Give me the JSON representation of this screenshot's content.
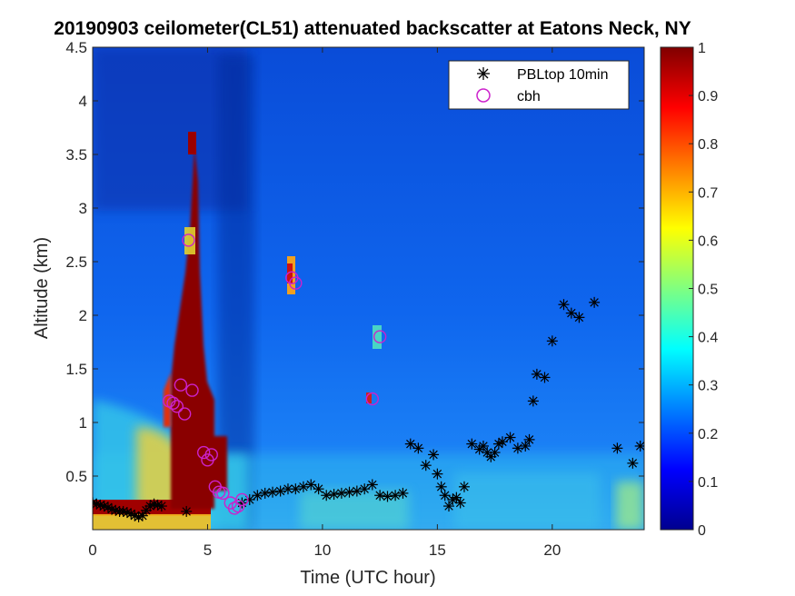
{
  "chart_data": {
    "type": "heatmap",
    "title": "20190903 ceilometer(CL51) attenuated backscatter at Eatons Neck, NY",
    "xlabel": "Time (UTC hour)",
    "ylabel": "Altitude (km)",
    "xlim": [
      0,
      24
    ],
    "ylim": [
      0,
      4.5
    ],
    "xticks": [
      0,
      5,
      10,
      15,
      20
    ],
    "xtick_labels": [
      "0",
      "5",
      "10",
      "15",
      "20"
    ],
    "yticks": [
      0.5,
      1,
      1.5,
      2,
      2.5,
      3,
      3.5,
      4,
      4.5
    ],
    "ytick_labels": [
      "0.5",
      "1",
      "1.5",
      "2",
      "2.5",
      "3",
      "3.5",
      "4",
      "4.5"
    ],
    "colorbar": {
      "colormap": "jet",
      "clim": [
        0,
        1
      ],
      "ticks": [
        0,
        0.1,
        0.2,
        0.3,
        0.4,
        0.5,
        0.6,
        0.7,
        0.8,
        0.9,
        1
      ],
      "tick_labels": [
        "0",
        "0.1",
        "0.2",
        "0.3",
        "0.4",
        "0.5",
        "0.6",
        "0.7",
        "0.8",
        "0.9",
        "1"
      ]
    },
    "legend": {
      "location": "top-right",
      "entries": [
        "PBLtop 10min",
        "cbh"
      ]
    },
    "series": [
      {
        "name": "PBLtop 10min",
        "marker": "asterisk",
        "color": "#000000",
        "points": [
          [
            0.0,
            0.25
          ],
          [
            0.17,
            0.24
          ],
          [
            0.33,
            0.23
          ],
          [
            0.5,
            0.22
          ],
          [
            0.67,
            0.21
          ],
          [
            0.83,
            0.19
          ],
          [
            1.0,
            0.18
          ],
          [
            1.17,
            0.17
          ],
          [
            1.33,
            0.17
          ],
          [
            1.5,
            0.16
          ],
          [
            1.67,
            0.15
          ],
          [
            1.83,
            0.13
          ],
          [
            2.0,
            0.12
          ],
          [
            2.17,
            0.13
          ],
          [
            2.33,
            0.18
          ],
          [
            2.5,
            0.22
          ],
          [
            2.67,
            0.24
          ],
          [
            2.83,
            0.23
          ],
          [
            3.0,
            0.22
          ],
          [
            4.08,
            0.17
          ],
          [
            6.5,
            0.25
          ],
          [
            6.83,
            0.28
          ],
          [
            7.17,
            0.32
          ],
          [
            7.5,
            0.34
          ],
          [
            7.83,
            0.35
          ],
          [
            8.17,
            0.36
          ],
          [
            8.5,
            0.38
          ],
          [
            8.83,
            0.38
          ],
          [
            9.17,
            0.4
          ],
          [
            9.5,
            0.42
          ],
          [
            9.83,
            0.38
          ],
          [
            10.17,
            0.32
          ],
          [
            10.5,
            0.33
          ],
          [
            10.83,
            0.34
          ],
          [
            11.17,
            0.35
          ],
          [
            11.5,
            0.36
          ],
          [
            11.83,
            0.38
          ],
          [
            12.17,
            0.42
          ],
          [
            12.5,
            0.32
          ],
          [
            12.83,
            0.31
          ],
          [
            13.17,
            0.32
          ],
          [
            13.5,
            0.34
          ],
          [
            13.83,
            0.8
          ],
          [
            14.17,
            0.76
          ],
          [
            14.5,
            0.6
          ],
          [
            14.83,
            0.7
          ],
          [
            15.0,
            0.52
          ],
          [
            15.17,
            0.4
          ],
          [
            15.33,
            0.32
          ],
          [
            15.5,
            0.22
          ],
          [
            15.67,
            0.28
          ],
          [
            15.83,
            0.3
          ],
          [
            16.0,
            0.25
          ],
          [
            16.17,
            0.4
          ],
          [
            16.5,
            0.8
          ],
          [
            16.83,
            0.75
          ],
          [
            17.0,
            0.78
          ],
          [
            17.17,
            0.72
          ],
          [
            17.33,
            0.68
          ],
          [
            17.5,
            0.72
          ],
          [
            17.67,
            0.8
          ],
          [
            17.83,
            0.82
          ],
          [
            18.17,
            0.86
          ],
          [
            18.5,
            0.76
          ],
          [
            18.83,
            0.78
          ],
          [
            19.0,
            0.84
          ],
          [
            19.17,
            1.2
          ],
          [
            19.33,
            1.45
          ],
          [
            19.67,
            1.42
          ],
          [
            20.0,
            1.76
          ],
          [
            20.5,
            2.1
          ],
          [
            20.83,
            2.02
          ],
          [
            21.17,
            1.98
          ],
          [
            21.83,
            2.12
          ],
          [
            22.83,
            0.76
          ],
          [
            23.5,
            0.62
          ],
          [
            23.83,
            0.78
          ]
        ]
      },
      {
        "name": "cbh",
        "marker": "circle",
        "color": "#cc22cc",
        "points": [
          [
            3.33,
            1.2
          ],
          [
            3.5,
            1.18
          ],
          [
            3.67,
            1.15
          ],
          [
            3.83,
            1.35
          ],
          [
            4.0,
            1.08
          ],
          [
            4.17,
            2.7
          ],
          [
            4.33,
            1.3
          ],
          [
            4.83,
            0.72
          ],
          [
            5.0,
            0.65
          ],
          [
            5.17,
            0.7
          ],
          [
            5.33,
            0.4
          ],
          [
            5.5,
            0.35
          ],
          [
            5.67,
            0.34
          ],
          [
            6.0,
            0.25
          ],
          [
            6.17,
            0.2
          ],
          [
            6.33,
            0.22
          ],
          [
            6.5,
            0.28
          ],
          [
            8.67,
            2.35
          ],
          [
            8.83,
            2.3
          ],
          [
            12.17,
            1.22
          ],
          [
            12.5,
            1.8
          ]
        ]
      }
    ]
  }
}
